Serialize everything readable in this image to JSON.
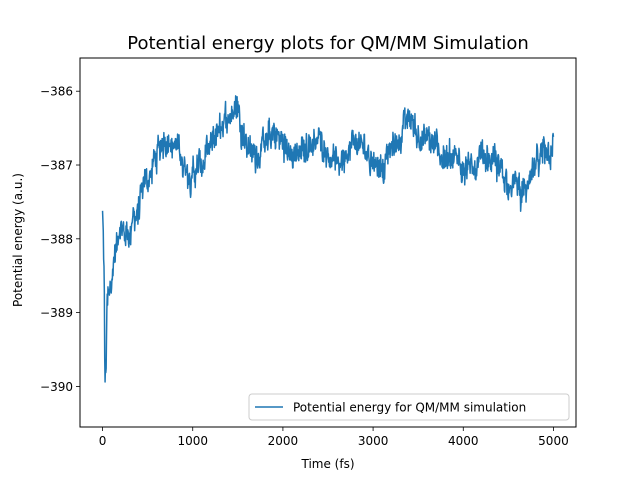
{
  "chart_data": {
    "type": "line",
    "title": "Potential energy plots for QM/MM Simulation",
    "xlabel": "Time (fs)",
    "ylabel": "Potential energy (a.u.)",
    "xlim": [
      -250,
      5250
    ],
    "ylim": [
      -390.55,
      -385.55
    ],
    "xticks": [
      0,
      1000,
      2000,
      3000,
      4000,
      5000
    ],
    "xtick_labels": [
      "0",
      "1000",
      "2000",
      "3000",
      "4000",
      "5000"
    ],
    "yticks": [
      -390,
      -389,
      -388,
      -387,
      -386
    ],
    "ytick_labels": [
      "−390",
      "−389",
      "−388",
      "−387",
      "−386"
    ],
    "grid": false,
    "legend_position": "lower right",
    "series": [
      {
        "name": "Potential energy for QM/MM simulation",
        "color": "#1f77b4",
        "x_start": 0,
        "x_end": 5000,
        "anchor_x": [
          0,
          15,
          30,
          50,
          80,
          120,
          200,
          300,
          400,
          500,
          600,
          700,
          800,
          900,
          1000,
          1100,
          1200,
          1300,
          1400,
          1500,
          1600,
          1700,
          1800,
          1900,
          2000,
          2100,
          2200,
          2300,
          2400,
          2500,
          2600,
          2700,
          2800,
          2900,
          3000,
          3100,
          3200,
          3300,
          3400,
          3500,
          3600,
          3700,
          3800,
          3900,
          4000,
          4100,
          4200,
          4300,
          4400,
          4500,
          4600,
          4700,
          4800,
          4900,
          5000
        ],
        "anchor_y": [
          -387.7,
          -388.3,
          -390.1,
          -389.0,
          -388.6,
          -388.3,
          -388.0,
          -387.9,
          -387.6,
          -387.2,
          -386.9,
          -386.6,
          -386.7,
          -387.0,
          -387.1,
          -387.0,
          -386.8,
          -386.5,
          -386.3,
          -386.2,
          -386.7,
          -386.9,
          -386.7,
          -386.6,
          -386.7,
          -386.9,
          -386.8,
          -386.7,
          -386.6,
          -386.8,
          -387.0,
          -386.8,
          -386.7,
          -386.8,
          -386.9,
          -387.0,
          -386.8,
          -386.6,
          -386.3,
          -386.6,
          -386.7,
          -386.8,
          -386.9,
          -387.0,
          -386.9,
          -387.1,
          -387.0,
          -386.9,
          -387.1,
          -387.2,
          -387.3,
          -387.4,
          -387.1,
          -386.8,
          -386.7
        ],
        "noise_amplitude": 0.18
      }
    ]
  }
}
